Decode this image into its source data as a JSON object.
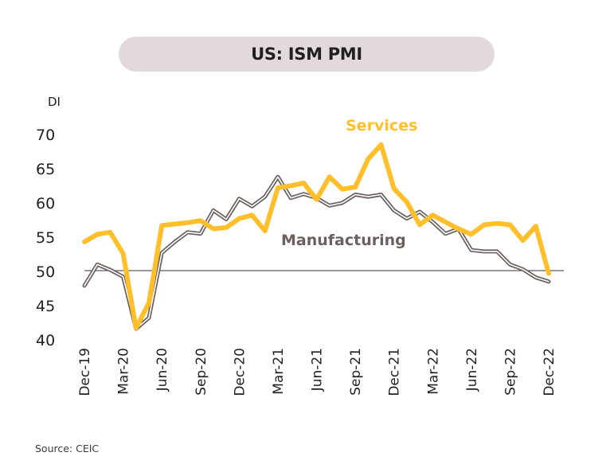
{
  "title": "US: ISM PMI",
  "source": "Source: CEIC",
  "colors": {
    "services": "#ffbf2a",
    "manufacturing": "#6b605d",
    "manufacturing_inner": "#ffffff",
    "ref_line": "#333333",
    "text": "#231f20",
    "pill": "#e2dada"
  },
  "chart_data": {
    "type": "line",
    "ylabel": "DI",
    "ylim": [
      40,
      72
    ],
    "yticks": [
      40,
      45,
      50,
      55,
      60,
      65,
      70
    ],
    "reference_line": 50,
    "xtick_labels": [
      "Dec-19",
      "Mar-20",
      "Jun-20",
      "Sep-20",
      "Dec-20",
      "Mar-21",
      "Jun-21",
      "Sep-21",
      "Dec-21",
      "Mar-22",
      "Jun-22",
      "Sep-22",
      "Dec-22"
    ],
    "x": [
      "Dec-19",
      "Jan-20",
      "Feb-20",
      "Mar-20",
      "Apr-20",
      "May-20",
      "Jun-20",
      "Jul-20",
      "Aug-20",
      "Sep-20",
      "Oct-20",
      "Nov-20",
      "Dec-20",
      "Jan-21",
      "Feb-21",
      "Mar-21",
      "Apr-21",
      "May-21",
      "Jun-21",
      "Jul-21",
      "Aug-21",
      "Sep-21",
      "Oct-21",
      "Nov-21",
      "Dec-21",
      "Jan-22",
      "Feb-22",
      "Mar-22",
      "Apr-22",
      "May-22",
      "Jun-22",
      "Jul-22",
      "Aug-22",
      "Sep-22",
      "Oct-22",
      "Nov-22",
      "Dec-22"
    ],
    "series": [
      {
        "name": "Services",
        "label_text": "Services",
        "values": [
          54.2,
          55.3,
          55.6,
          52.5,
          41.6,
          45.3,
          56.6,
          56.8,
          57.0,
          57.3,
          56.1,
          56.3,
          57.6,
          58.1,
          55.8,
          62.1,
          62.4,
          62.8,
          60.4,
          63.7,
          61.9,
          62.2,
          66.3,
          68.4,
          62.0,
          60.0,
          56.7,
          58.1,
          57.1,
          56.1,
          55.3,
          56.7,
          56.9,
          56.7,
          54.4,
          56.5,
          49.6
        ]
      },
      {
        "name": "Manufacturing",
        "label_text": "Manufacturing",
        "values": [
          47.8,
          50.9,
          50.1,
          49.1,
          41.5,
          43.1,
          52.6,
          54.2,
          55.6,
          55.4,
          58.8,
          57.5,
          60.5,
          59.4,
          60.8,
          63.7,
          60.6,
          61.2,
          60.6,
          59.5,
          59.9,
          61.1,
          60.8,
          61.1,
          58.8,
          57.6,
          58.6,
          57.1,
          55.4,
          56.1,
          53.0,
          52.8,
          52.8,
          50.9,
          50.2,
          49.0,
          48.4
        ]
      }
    ]
  }
}
